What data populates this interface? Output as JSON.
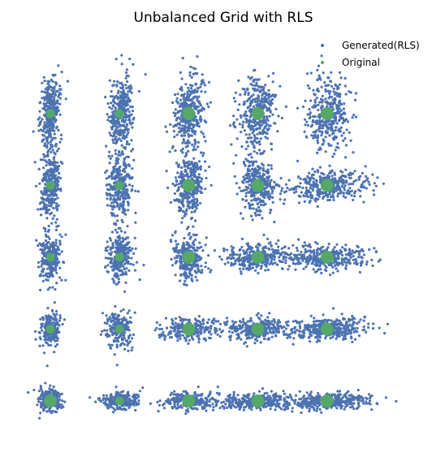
{
  "chart_data": {
    "type": "scatter",
    "title": "Unbalanced Grid with RLS",
    "xlabel": "",
    "ylabel": "",
    "axes_visible": false,
    "grid": false,
    "legend_position": "top-right",
    "xlim": [
      -0.2,
      5.5
    ],
    "ylim": [
      -0.5,
      5.0
    ],
    "series": [
      {
        "name": "Generated(RLS)",
        "color": "#4c72b0",
        "kind": "scatter-cloud",
        "points_per_cluster": 260,
        "note_grid": "5x5 grid of clusters; clusters elongated toward the larger of (col,row)",
        "cluster_centers": [
          [
            0,
            0
          ],
          [
            1,
            0
          ],
          [
            2,
            0
          ],
          [
            3,
            0
          ],
          [
            4,
            0
          ],
          [
            0,
            1
          ],
          [
            1,
            1
          ],
          [
            2,
            1
          ],
          [
            3,
            1
          ],
          [
            4,
            1
          ],
          [
            0,
            2
          ],
          [
            1,
            2
          ],
          [
            2,
            2
          ],
          [
            3,
            2
          ],
          [
            4,
            2
          ],
          [
            0,
            3
          ],
          [
            1,
            3
          ],
          [
            2,
            3
          ],
          [
            3,
            3
          ],
          [
            4,
            3
          ],
          [
            0,
            4
          ],
          [
            1,
            4
          ],
          [
            2,
            4
          ],
          [
            3,
            4
          ],
          [
            4,
            4
          ]
        ]
      },
      {
        "name": "Original",
        "color": "#55a868",
        "points": [
          [
            0,
            0
          ],
          [
            1,
            0
          ],
          [
            2,
            0
          ],
          [
            3,
            0
          ],
          [
            4,
            0
          ],
          [
            0,
            1
          ],
          [
            1,
            1
          ],
          [
            2,
            1
          ],
          [
            3,
            1
          ],
          [
            4,
            1
          ],
          [
            0,
            2
          ],
          [
            1,
            2
          ],
          [
            2,
            2
          ],
          [
            3,
            2
          ],
          [
            4,
            2
          ],
          [
            0,
            3
          ],
          [
            1,
            3
          ],
          [
            2,
            3
          ],
          [
            3,
            3
          ],
          [
            4,
            3
          ],
          [
            0,
            4
          ],
          [
            1,
            4
          ],
          [
            2,
            4
          ],
          [
            3,
            4
          ],
          [
            4,
            4
          ]
        ]
      }
    ]
  }
}
